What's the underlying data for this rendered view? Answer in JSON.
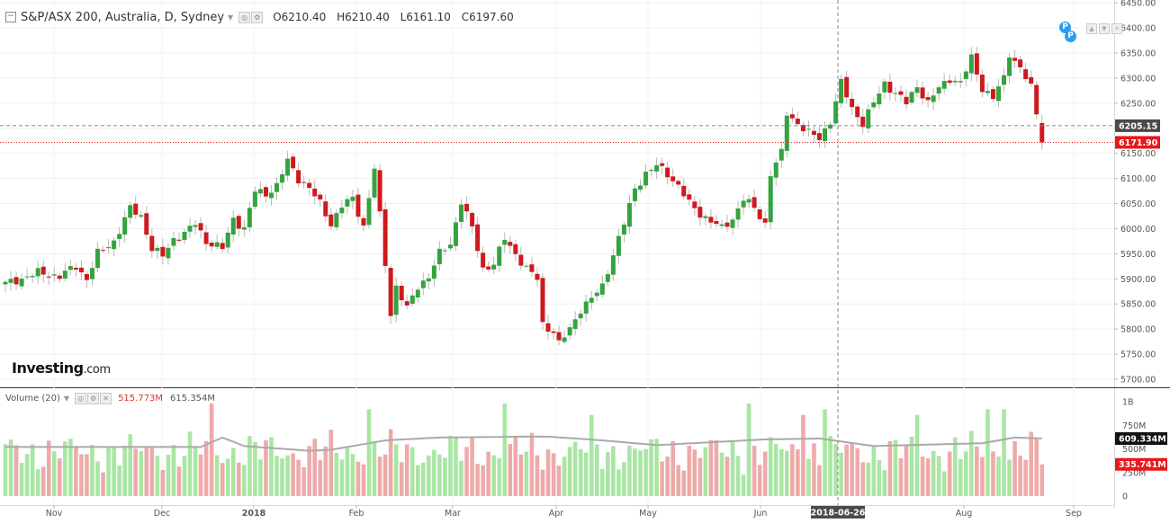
{
  "header": {
    "title": "S&P/ASX 200, Australia, D, Sydney",
    "open": "O6210.40",
    "high": "H6210.40",
    "low": "L6161.10",
    "close": "C6197.60"
  },
  "volume_header": {
    "label": "Volume (20)",
    "value_red": "515.773M",
    "value_ma": "615.354M"
  },
  "logo": {
    "brand": "Investing",
    "suffix": ".com"
  },
  "badges": [
    "P",
    "P"
  ],
  "colors": {
    "up": "#34a33f",
    "down": "#d0191d",
    "vol_up": "#a9e6a3",
    "vol_down": "#eeaaaa",
    "ma": "#a9a9a9",
    "last": "#e8181b",
    "crosshair": "#555555"
  },
  "chart_data": [
    {
      "type": "candlestick",
      "title": "S&P/ASX 200, Australia, D, Sydney",
      "y_ticks": [
        "6450.00",
        "6400.00",
        "6350.00",
        "6300.00",
        "6250.00",
        "6200.00",
        "6150.00",
        "6100.00",
        "6050.00",
        "6000.00",
        "5950.00",
        "5900.00",
        "5850.00",
        "5800.00",
        "5750.00",
        "5700.00"
      ],
      "ylim": [
        5700,
        6450
      ],
      "x_ticks": [
        "Nov",
        "Dec",
        "2018",
        "Feb",
        "Mar",
        "Apr",
        "May",
        "Jun",
        "Aug",
        "Sep"
      ],
      "crosshair_date": "2018-06-26",
      "price_labels": {
        "crosshair": "6205.15",
        "last": "6171.90"
      },
      "close_path": [
        [
          0,
          5890
        ],
        [
          6,
          5912
        ],
        [
          10,
          5905
        ],
        [
          13,
          5925
        ],
        [
          15,
          5900
        ],
        [
          17,
          5950
        ],
        [
          20,
          5975
        ],
        [
          23,
          6040
        ],
        [
          25,
          6025
        ],
        [
          27,
          5960
        ],
        [
          29,
          5945
        ],
        [
          31,
          5980
        ],
        [
          33,
          5990
        ],
        [
          35,
          6010
        ],
        [
          37,
          5975
        ],
        [
          40,
          5960
        ],
        [
          42,
          6020
        ],
        [
          44,
          6000
        ],
        [
          46,
          6075
        ],
        [
          48,
          6070
        ],
        [
          50,
          6085
        ],
        [
          52,
          6135
        ],
        [
          54,
          6100
        ],
        [
          56,
          6080
        ],
        [
          58,
          6050
        ],
        [
          60,
          6010
        ],
        [
          62,
          6045
        ],
        [
          64,
          6060
        ],
        [
          66,
          6005
        ],
        [
          68,
          6120
        ],
        [
          70,
          5930
        ],
        [
          71,
          5830
        ],
        [
          72,
          5885
        ],
        [
          74,
          5840
        ],
        [
          76,
          5885
        ],
        [
          78,
          5905
        ],
        [
          80,
          5950
        ],
        [
          82,
          5970
        ],
        [
          84,
          6055
        ],
        [
          86,
          6000
        ],
        [
          88,
          5920
        ],
        [
          90,
          5930
        ],
        [
          92,
          5980
        ],
        [
          94,
          5950
        ],
        [
          96,
          5920
        ],
        [
          98,
          5900
        ],
        [
          99,
          5810
        ],
        [
          101,
          5795
        ],
        [
          102,
          5770
        ],
        [
          104,
          5800
        ],
        [
          106,
          5840
        ],
        [
          108,
          5860
        ],
        [
          110,
          5885
        ],
        [
          112,
          5950
        ],
        [
          114,
          6010
        ],
        [
          116,
          6080
        ],
        [
          118,
          6110
        ],
        [
          120,
          6125
        ],
        [
          122,
          6110
        ],
        [
          124,
          6085
        ],
        [
          126,
          6050
        ],
        [
          128,
          6030
        ],
        [
          130,
          6015
        ],
        [
          132,
          6000
        ],
        [
          134,
          6020
        ],
        [
          136,
          6060
        ],
        [
          138,
          6040
        ],
        [
          140,
          6010
        ],
        [
          141,
          6110
        ],
        [
          143,
          6150
        ],
        [
          144,
          6230
        ],
        [
          146,
          6210
        ],
        [
          148,
          6190
        ],
        [
          150,
          6180
        ],
        [
          152,
          6215
        ],
        [
          154,
          6290
        ],
        [
          156,
          6240
        ],
        [
          158,
          6210
        ],
        [
          160,
          6250
        ],
        [
          162,
          6290
        ],
        [
          164,
          6270
        ],
        [
          166,
          6250
        ],
        [
          168,
          6285
        ],
        [
          170,
          6250
        ],
        [
          172,
          6280
        ],
        [
          174,
          6300
        ],
        [
          176,
          6290
        ],
        [
          178,
          6340
        ],
        [
          180,
          6280
        ],
        [
          182,
          6260
        ],
        [
          184,
          6300
        ],
        [
          185,
          6350
        ],
        [
          187,
          6320
        ],
        [
          189,
          6280
        ],
        [
          190,
          6230
        ],
        [
          191,
          6172
        ]
      ],
      "volume": {
        "y_ticks": [
          "1B",
          "750M",
          "500M",
          "250M",
          "0"
        ],
        "ylim": [
          0,
          1000
        ],
        "labels": {
          "ma": "609.334M",
          "last": "335.741M"
        },
        "ma_path": [
          [
            0,
            520
          ],
          [
            20,
            520
          ],
          [
            36,
            520
          ],
          [
            40,
            620
          ],
          [
            44,
            530
          ],
          [
            56,
            480
          ],
          [
            60,
            490
          ],
          [
            70,
            590
          ],
          [
            80,
            620
          ],
          [
            96,
            630
          ],
          [
            100,
            630
          ],
          [
            110,
            590
          ],
          [
            120,
            540
          ],
          [
            140,
            600
          ],
          [
            150,
            610
          ],
          [
            160,
            530
          ],
          [
            180,
            560
          ],
          [
            186,
            620
          ],
          [
            191,
            610
          ]
        ]
      }
    }
  ]
}
